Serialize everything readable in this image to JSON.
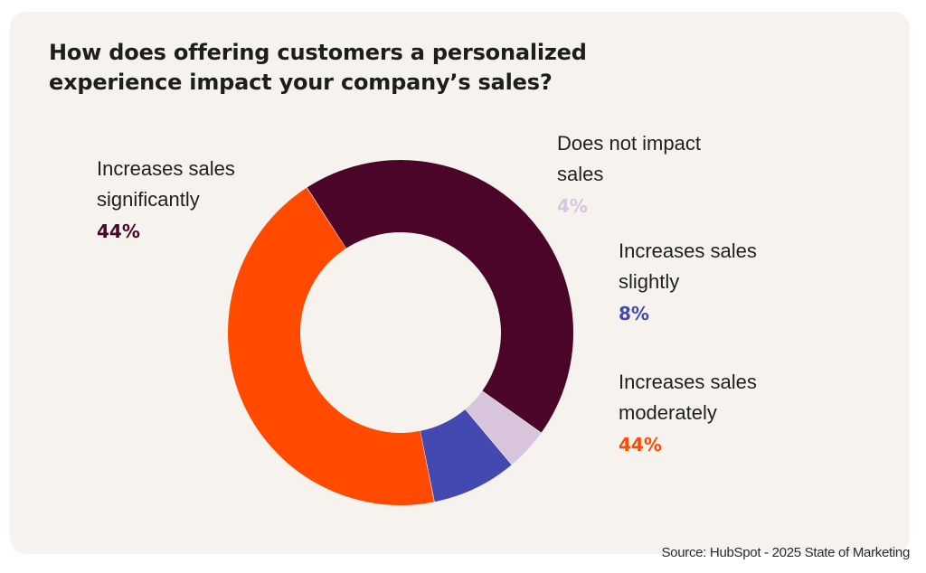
{
  "chart_data": {
    "type": "pie",
    "style": "donut",
    "title": "How does offering customers a personalized experience impact your company’s sales?",
    "slices": [
      {
        "label": "Increases sales significantly",
        "value": 44,
        "display": "44%",
        "color": "#4a0529"
      },
      {
        "label": "Does not impact sales",
        "value": 4,
        "display": "4%",
        "color": "#d8c5dc"
      },
      {
        "label": "Increases sales slightly",
        "value": 8,
        "display": "8%",
        "color": "#4349b1"
      },
      {
        "label": "Increases sales moderately",
        "value": 44,
        "display": "44%",
        "color": "#ff4a00"
      }
    ],
    "source": "Source: HubSpot - 2025 State of Marketing",
    "background_color": "#f6f3ee"
  }
}
